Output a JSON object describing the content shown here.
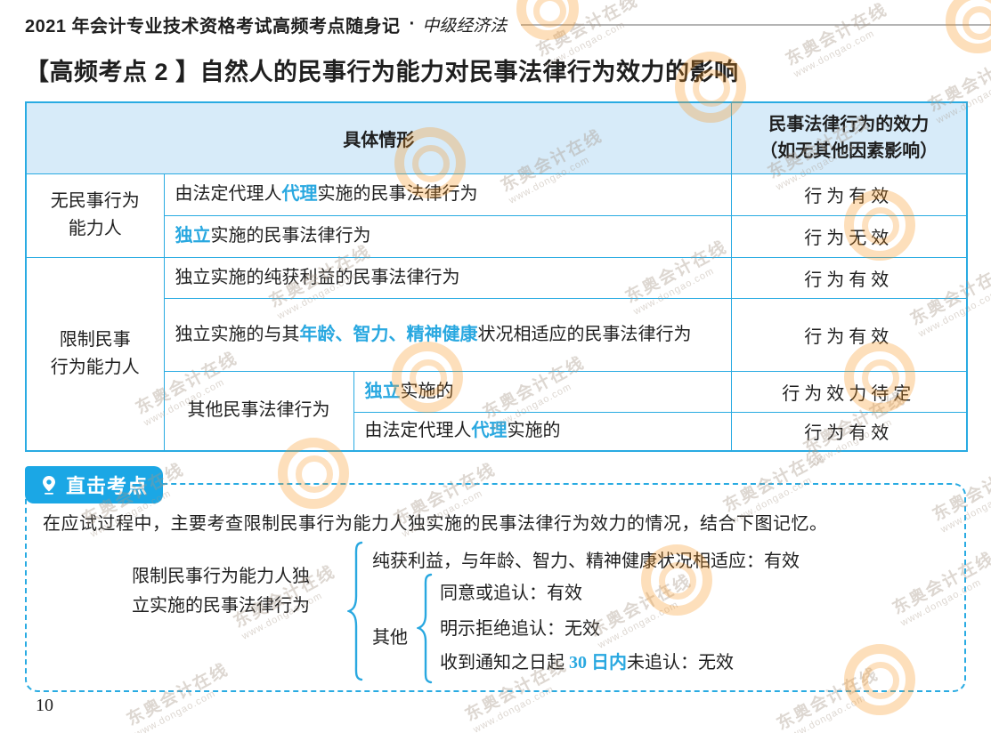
{
  "page": {
    "header_title": "2021 年会计专业技术资格考试高频考点随身记",
    "header_separator": "·",
    "header_subject": "中级经济法",
    "section_title": "【高频考点 2 】自然人的民事行为能力对民事法律行为效力的影响",
    "page_number": "10"
  },
  "table": {
    "header": {
      "situation": "具体情形",
      "effect_line1": "民事法律行为的效力",
      "effect_line2": "（如无其他因素影响）"
    },
    "groups": [
      {
        "label_line1": "无民事行为",
        "label_line2": "能力人"
      },
      {
        "label_line1": "限制民事",
        "label_line2": "行为能力人"
      }
    ],
    "rows": [
      {
        "pre": "由法定代理人",
        "hl": "代理",
        "post": "实施的民事法律行为",
        "effect": "行为有效"
      },
      {
        "hl": "独立",
        "post": "实施的民事法律行为",
        "effect": "行为无效"
      },
      {
        "pre": "独立实施的纯获利益的民事法律行为",
        "effect": "行为有效"
      },
      {
        "pre": "独立实施的与其",
        "hl": "年龄、智力、精神健康",
        "post": "状况相适应的民事法律行为",
        "effect": "行为有效"
      },
      {
        "sub_label": "其他民事法律行为",
        "hl": "独立",
        "post": "实施的",
        "effect": "行为效力待定"
      },
      {
        "pre": "由法定代理人",
        "hl": "代理",
        "post": "实施的",
        "effect": "行为有效"
      }
    ]
  },
  "callout": {
    "badge": "直击考点",
    "intro": "在应试过程中，主要考查限制民事行为能力人独实施的民事法律行为效力的情况，结合下图记忆。",
    "tree": {
      "root_line1": "限制民事行为能力人独",
      "root_line2": "立实施的民事法律行为",
      "branch_pure": "纯获利益，与年龄、智力、精神健康状况相适应：有效",
      "other_label": "其他",
      "other_branches": [
        {
          "pre": "同意或追认：有效"
        },
        {
          "pre": "明示拒绝追认：无效"
        },
        {
          "pre": "收到通知之日起 ",
          "hl": "30 日内",
          "post": "未追认：无效"
        }
      ]
    }
  },
  "watermark": {
    "line1": "东奥会计在线",
    "line2": "www.dongao.com"
  },
  "colors": {
    "table_border": "#29ABE2",
    "table_header_fill": "#D7EBF9",
    "highlight_text": "#29A8E0",
    "badge_bg": "#1BA7E5",
    "logo_orange": "#F7941D"
  }
}
